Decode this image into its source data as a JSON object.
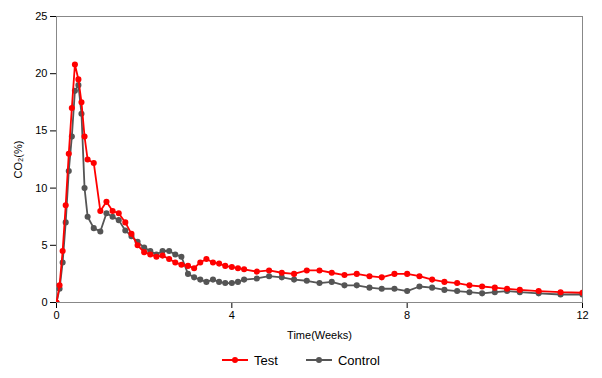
{
  "chart_data": {
    "type": "line",
    "xlabel": "Time(Weeks)",
    "ylabel": "CO₂(%)",
    "x": [
      0,
      0.07,
      0.14,
      0.21,
      0.28,
      0.35,
      0.42,
      0.5,
      0.57,
      0.64,
      0.71,
      0.85,
      1.0,
      1.14,
      1.28,
      1.42,
      1.57,
      1.71,
      1.85,
      2.0,
      2.14,
      2.28,
      2.42,
      2.57,
      2.71,
      2.85,
      3.0,
      3.14,
      3.28,
      3.42,
      3.57,
      3.71,
      3.85,
      4.0,
      4.14,
      4.28,
      4.57,
      4.85,
      5.14,
      5.42,
      5.71,
      6.0,
      6.28,
      6.57,
      6.85,
      7.14,
      7.42,
      7.71,
      8.0,
      8.28,
      8.57,
      8.85,
      9.14,
      9.42,
      9.71,
      10.0,
      10.28,
      10.57,
      11.0,
      11.5,
      12.0
    ],
    "series": [
      {
        "name": "Test",
        "color": "#ff0000",
        "values": [
          0,
          1.5,
          4.5,
          8.5,
          13.0,
          17.0,
          20.8,
          19.5,
          17.5,
          14.5,
          12.5,
          12.2,
          8.0,
          8.8,
          8.0,
          7.8,
          7.0,
          6.0,
          5.0,
          4.4,
          4.2,
          4.0,
          4.1,
          3.8,
          3.5,
          3.3,
          3.2,
          3.0,
          3.5,
          3.8,
          3.5,
          3.4,
          3.2,
          3.1,
          3.0,
          2.9,
          2.7,
          2.8,
          2.6,
          2.5,
          2.8,
          2.8,
          2.6,
          2.4,
          2.5,
          2.3,
          2.2,
          2.5,
          2.5,
          2.3,
          2.0,
          1.8,
          1.7,
          1.5,
          1.4,
          1.3,
          1.2,
          1.1,
          1.0,
          0.9,
          0.85
        ]
      },
      {
        "name": "Control",
        "color": "#555555",
        "values": [
          0,
          1.2,
          3.5,
          7.0,
          11.5,
          14.5,
          18.5,
          19.0,
          16.5,
          10.0,
          7.5,
          6.5,
          6.2,
          7.8,
          7.5,
          7.2,
          6.3,
          5.8,
          5.3,
          4.8,
          4.5,
          4.2,
          4.5,
          4.5,
          4.2,
          4.0,
          2.5,
          2.2,
          2.0,
          1.8,
          2.0,
          1.8,
          1.7,
          1.7,
          1.8,
          2.0,
          2.1,
          2.3,
          2.2,
          2.0,
          1.9,
          1.7,
          1.8,
          1.5,
          1.5,
          1.3,
          1.2,
          1.2,
          1.0,
          1.4,
          1.3,
          1.1,
          1.0,
          0.9,
          0.8,
          0.9,
          1.0,
          0.9,
          0.8,
          0.7,
          0.7
        ]
      }
    ],
    "xlim": [
      0,
      12
    ],
    "ylim": [
      0,
      25
    ],
    "xticks": [
      0,
      4,
      8,
      12
    ],
    "yticks": [
      0,
      5,
      10,
      15,
      20,
      25
    ],
    "grid": false,
    "legend": "bottom",
    "marker": "circle"
  }
}
